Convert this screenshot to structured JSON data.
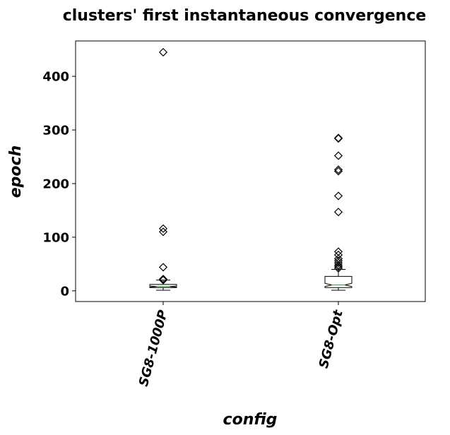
{
  "chart_data": {
    "type": "boxplot",
    "title": "clusters' first instantaneous convergence",
    "xlabel": "config",
    "ylabel": "epoch",
    "ylim": [
      -20,
      466
    ],
    "yticks": [
      0,
      100,
      200,
      300,
      400
    ],
    "grid": false,
    "notched": true,
    "categories": [
      "SG8-1000P",
      "SG8-Opt"
    ],
    "boxes": [
      {
        "name": "SG8-1000P",
        "whisker_low": 1,
        "q1": 6,
        "median": 8,
        "q3": 12,
        "whisker_high": 20,
        "notch_low": 7,
        "notch_high": 9,
        "outliers": [
          445,
          116,
          110,
          44,
          22,
          21,
          20
        ]
      },
      {
        "name": "SG8-Opt",
        "whisker_low": 1,
        "q1": 6,
        "median": 11,
        "q3": 27,
        "whisker_high": 40,
        "notch_low": 8,
        "notch_high": 14,
        "outliers": [
          285,
          284,
          252,
          226,
          223,
          177,
          147,
          73,
          67,
          60,
          56,
          52,
          48,
          45,
          42
        ]
      }
    ],
    "colors": {
      "median": "#2ca02c",
      "box": "#000000",
      "outlier": "#000000"
    }
  }
}
